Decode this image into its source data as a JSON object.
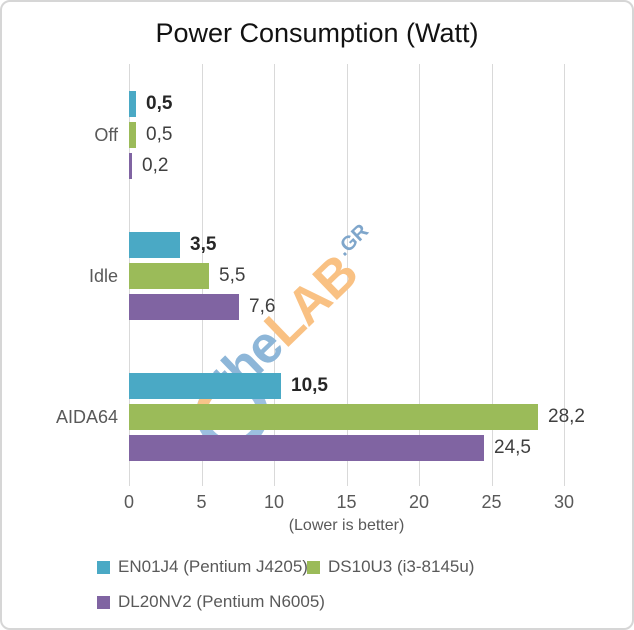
{
  "title": "Power Consumption (Watt)",
  "watermark": {
    "the": "the",
    "lab": "LAB",
    "gr": ".GR"
  },
  "chart_data": {
    "type": "bar",
    "orientation": "horizontal",
    "title": "Power Consumption (Watt)",
    "categories": [
      "Off",
      "Idle",
      "AIDA64"
    ],
    "series": [
      {
        "name": "EN01J4 (Pentium J4205)",
        "color": "#4AA9C5",
        "values": [
          0.5,
          3.5,
          10.5
        ],
        "labels": [
          "0,5",
          "3,5",
          "10,5"
        ],
        "label_bold": true
      },
      {
        "name": "DS10U3 (i3-8145u)",
        "color": "#9BBB59",
        "values": [
          0.5,
          5.5,
          28.2
        ],
        "labels": [
          "0,5",
          "5,5",
          "28,2"
        ],
        "label_bold": false
      },
      {
        "name": "DL20NV2 (Pentium N6005)",
        "color": "#8064A2",
        "values": [
          0.2,
          7.6,
          24.5
        ],
        "labels": [
          "0,2",
          "7,6",
          "24,5"
        ],
        "label_bold": false
      }
    ],
    "xlabel": "(Lower is better)",
    "xlim": [
      0,
      30
    ],
    "xticks": [
      0,
      5,
      10,
      15,
      20,
      25,
      30
    ],
    "grid": true,
    "legend_position": "bottom",
    "decimal_separator": ","
  },
  "colors": {
    "grid": "#d9d9d9",
    "axis_text": "#595959",
    "value_label": "#3f3f3f",
    "value_label_bold": "#262626",
    "title_text": "#121212",
    "border": "#d6d6d6",
    "watermark_blue": "#8db6d8",
    "watermark_orange": "#f9c183"
  }
}
